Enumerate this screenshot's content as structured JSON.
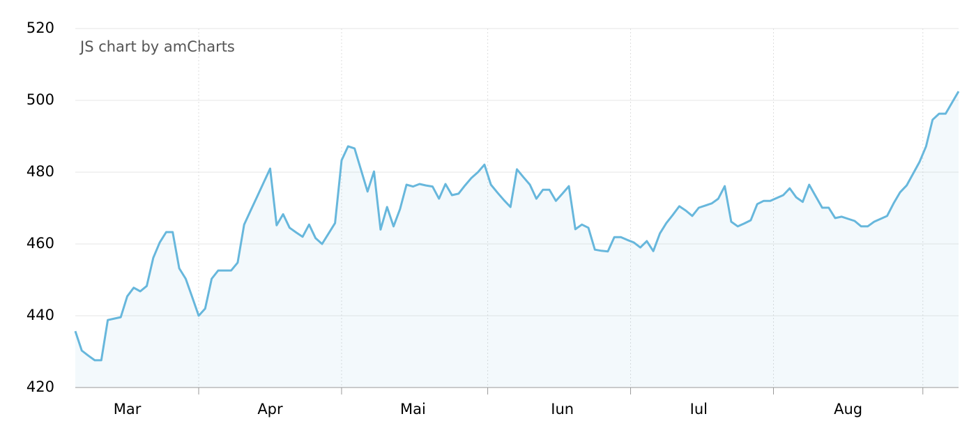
{
  "chart_data": {
    "type": "area",
    "credit": "JS chart by amCharts",
    "categories": [
      null,
      null,
      null,
      null,
      null,
      null,
      null,
      null,
      "Mar",
      null,
      null,
      null,
      null,
      null,
      null,
      null,
      null,
      null,
      null,
      null,
      null,
      null,
      null,
      null,
      null,
      null,
      null,
      null,
      null,
      null,
      "Apr",
      null,
      null,
      null,
      null,
      null,
      null,
      null,
      null,
      null,
      null,
      null,
      null,
      null,
      null,
      null,
      null,
      null,
      null,
      null,
      null,
      null,
      "Mai",
      null,
      null,
      null,
      null,
      null,
      null,
      null,
      null,
      null,
      null,
      null,
      null,
      null,
      null,
      null,
      null,
      null,
      null,
      null,
      null,
      null,
      null,
      "Iun",
      null,
      null,
      null,
      null,
      null,
      null,
      null,
      null,
      null,
      null,
      null,
      null,
      null,
      null,
      null,
      null,
      null,
      null,
      null,
      null,
      "Iul",
      null,
      null,
      null,
      null,
      null,
      null,
      null,
      null,
      null,
      null,
      null,
      null,
      null,
      null,
      null,
      null,
      null,
      null,
      null,
      null,
      null,
      null,
      "Aug",
      null,
      null,
      null,
      null,
      null,
      null,
      null,
      null,
      null,
      null,
      null,
      null,
      null,
      null,
      null,
      null,
      null
    ],
    "values": [
      435.7,
      430.3,
      428.9,
      427.6,
      427.6,
      438.8,
      439.2,
      439.6,
      445.4,
      447.8,
      446.8,
      448.3,
      456.1,
      460.4,
      463.3,
      463.3,
      453.2,
      450.3,
      445.2,
      440.0,
      442,
      450.3,
      452.6,
      452.6,
      452.6,
      454.8,
      465.4,
      469.3,
      473.2,
      477.1,
      481,
      465.2,
      468.3,
      464.5,
      463.2,
      462,
      465.4,
      461.6,
      460,
      462.9,
      465.8,
      483.3,
      487.2,
      486.6,
      480.6,
      474.6,
      480.2,
      464,
      470.3,
      464.9,
      469.7,
      476.5,
      476,
      476.7,
      476.3,
      476,
      472.6,
      476.7,
      473.6,
      474,
      476.3,
      478.4,
      480,
      482.1,
      476.5,
      474.3,
      472.2,
      470.3,
      480.8,
      478.6,
      476.5,
      472.6,
      475.1,
      475.1,
      472,
      474,
      476.1,
      464.1,
      465.4,
      464.5,
      458.4,
      458.1,
      457.9,
      461.9,
      461.9,
      461.1,
      460.4,
      459,
      460.8,
      458,
      462.9,
      465.8,
      468.1,
      470.5,
      469.3,
      467.8,
      470.1,
      470.7,
      471.3,
      472.6,
      476.1,
      466.2,
      464.9,
      465.7,
      466.6,
      471.1,
      472,
      472,
      472.8,
      473.6,
      475.5,
      473,
      471.7,
      476.5,
      473.3,
      470.1,
      470.1,
      467.2,
      467.6,
      467,
      466.4,
      464.9,
      464.9,
      466.2,
      467,
      467.8,
      471.3,
      474.4,
      476.3,
      479.6,
      482.9,
      487.2,
      494.6,
      496.3,
      496.3,
      499.4,
      502.5
    ],
    "color": "#67b7dc",
    "ylim": [
      420,
      520
    ],
    "yticks": [
      420,
      440,
      460,
      480,
      500,
      520
    ],
    "grid": true
  }
}
